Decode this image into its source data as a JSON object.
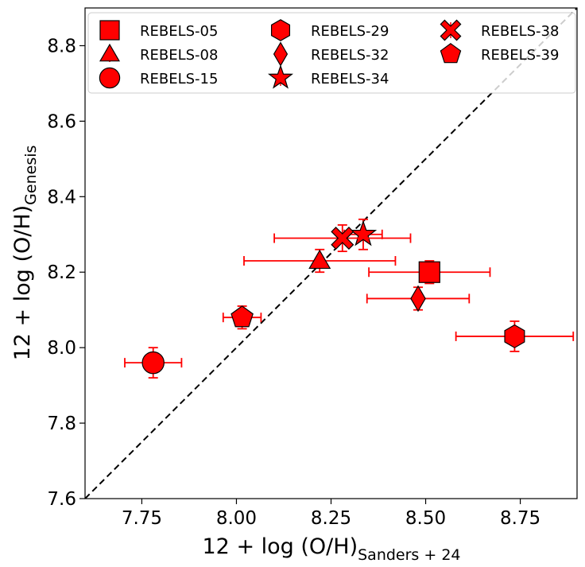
{
  "chart_data": {
    "type": "scatter",
    "title": "",
    "xlabel": {
      "main": "12 + log (O/H)",
      "sub": "Sanders + 24"
    },
    "ylabel": {
      "main": "12 + log (O/H)",
      "sub": "Genesis"
    },
    "xlim": [
      7.6,
      8.9
    ],
    "ylim": [
      7.6,
      8.9
    ],
    "xticks": [
      7.75,
      8.0,
      8.25,
      8.5,
      8.75
    ],
    "xtick_labels": [
      "7.75",
      "8.00",
      "8.25",
      "8.50",
      "8.75"
    ],
    "yticks": [
      7.6,
      7.8,
      8.0,
      8.2,
      8.4,
      8.6,
      8.8
    ],
    "ytick_labels": [
      "7.6",
      "7.8",
      "8.0",
      "8.2",
      "8.4",
      "8.6",
      "8.8"
    ],
    "one_to_one_line": true,
    "legend_position": "top",
    "marker_color": "#ff0000",
    "edge_color": "#000000",
    "line_color": "#000000",
    "points": [
      {
        "name": "REBELS-05",
        "marker": "square",
        "x": 8.51,
        "x_err": 0.16,
        "y": 8.2,
        "y_err": 0.03
      },
      {
        "name": "REBELS-08",
        "marker": "triangle",
        "x": 8.22,
        "x_err": 0.2,
        "y": 8.23,
        "y_err": 0.03
      },
      {
        "name": "REBELS-15",
        "marker": "circle",
        "x": 7.78,
        "x_err": 0.075,
        "y": 7.96,
        "y_err": 0.04
      },
      {
        "name": "REBELS-29",
        "marker": "hexagon",
        "x": 8.735,
        "x_err": 0.155,
        "y": 8.03,
        "y_err": 0.04
      },
      {
        "name": "REBELS-32",
        "marker": "diamond",
        "x": 8.48,
        "x_err": 0.135,
        "y": 8.13,
        "y_err": 0.03
      },
      {
        "name": "REBELS-34",
        "marker": "star",
        "x": 8.335,
        "x_err": 0.05,
        "y": 8.3,
        "y_err": 0.04
      },
      {
        "name": "REBELS-38",
        "marker": "x",
        "x": 8.28,
        "x_err": 0.18,
        "y": 8.29,
        "y_err": 0.035
      },
      {
        "name": "REBELS-39",
        "marker": "pentagon",
        "x": 8.015,
        "x_err": 0.05,
        "y": 8.08,
        "y_err": 0.03
      }
    ]
  }
}
